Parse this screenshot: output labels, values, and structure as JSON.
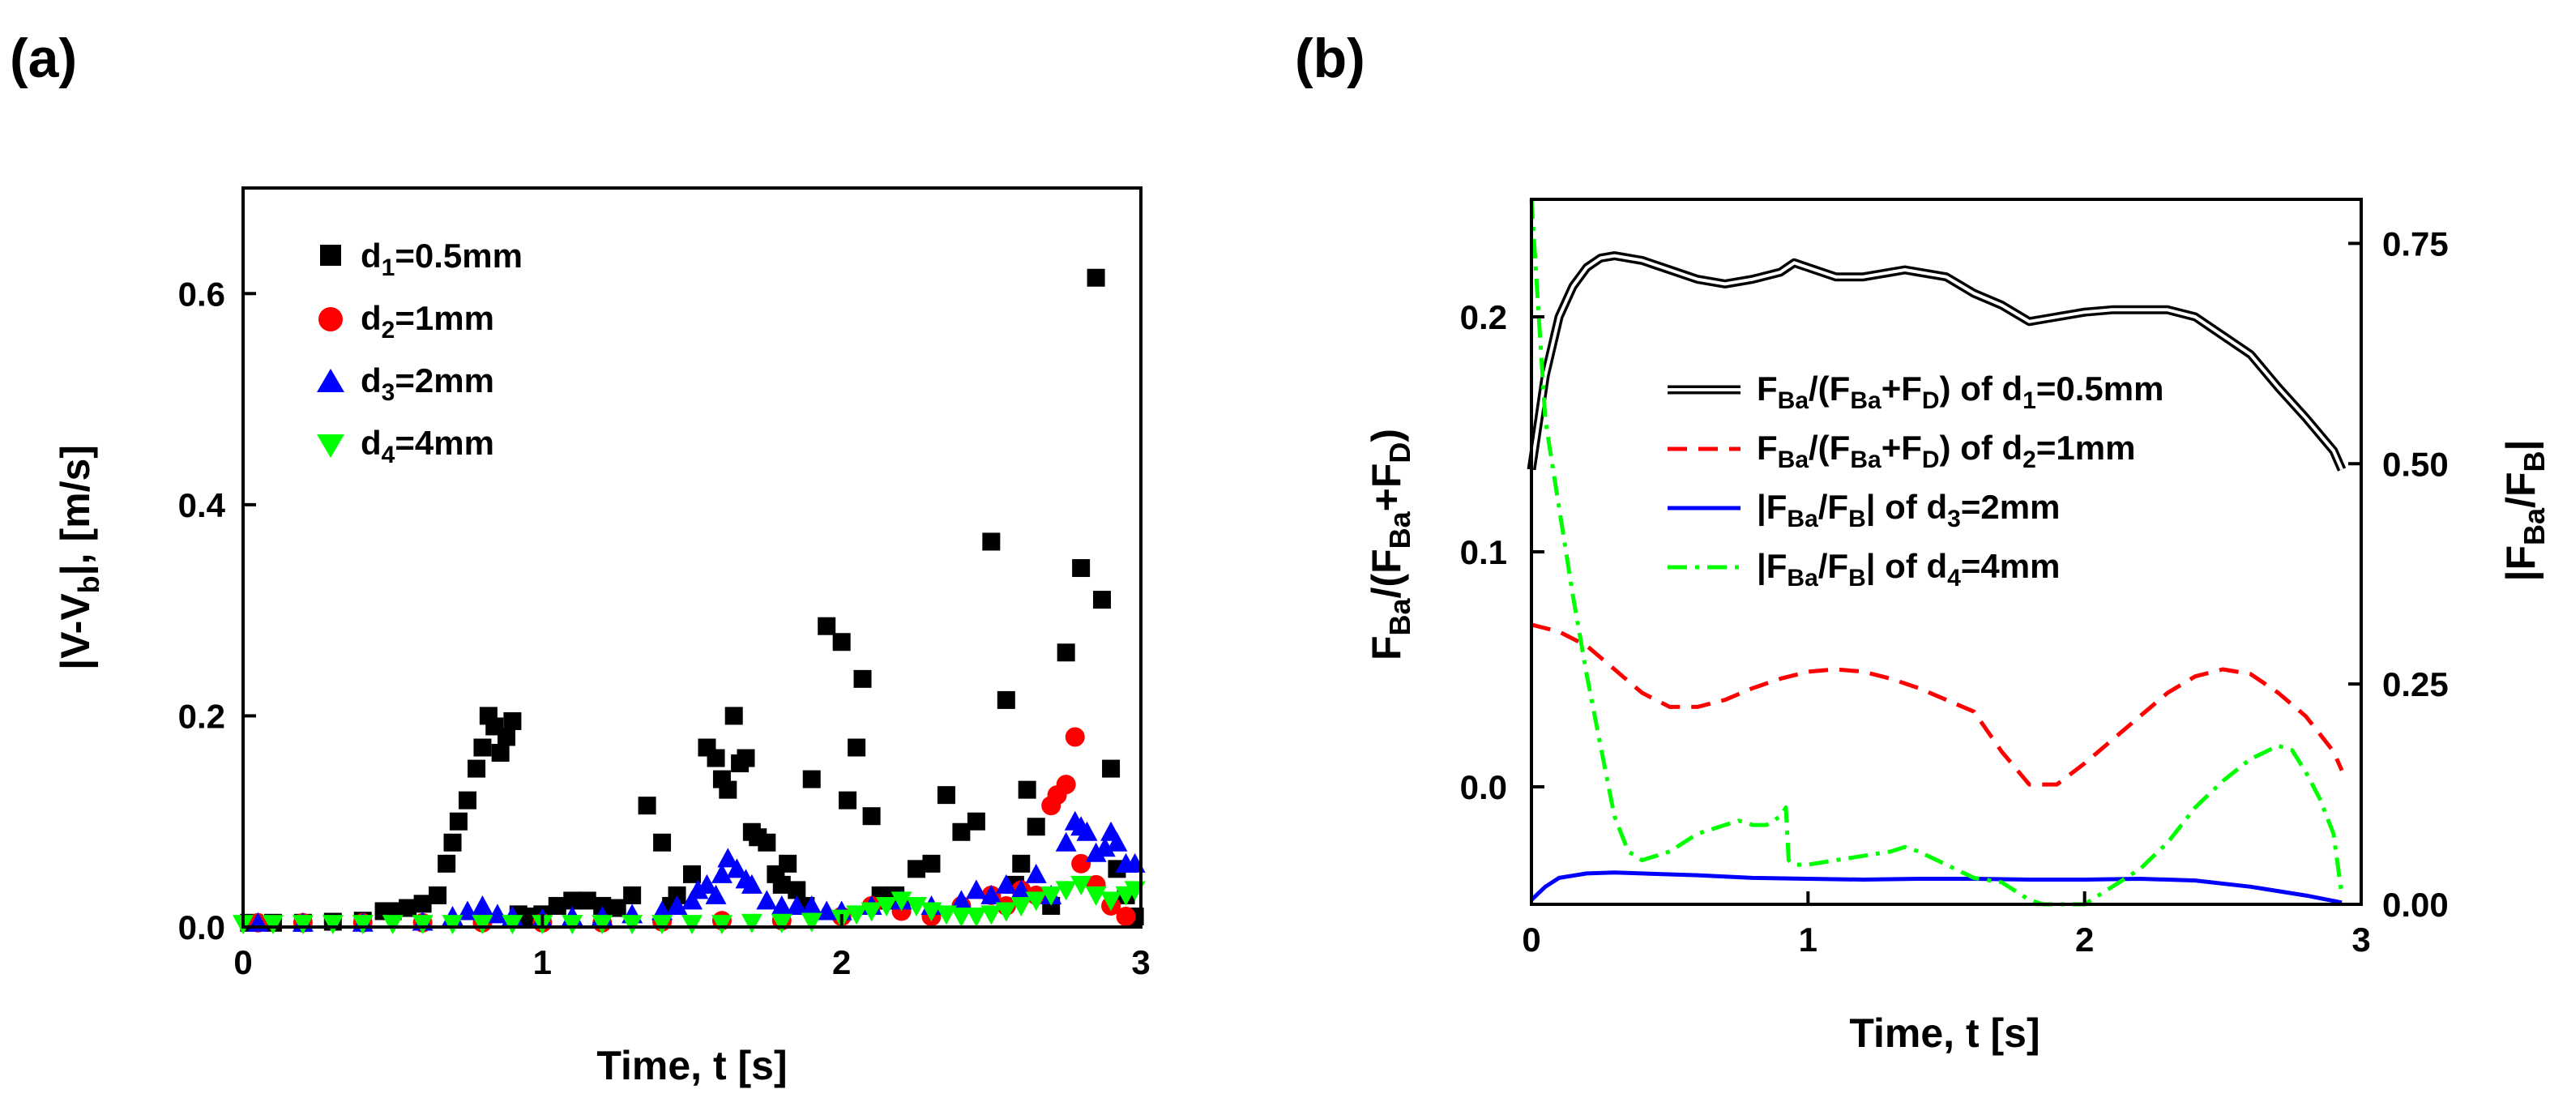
{
  "colors": {
    "black": "#000000",
    "red": "#ff0000",
    "blue": "#0000ff",
    "green": "#00ff00",
    "axis": "#000000"
  },
  "panel_labels": [
    "(a)",
    "(b)"
  ],
  "chart_data": [
    {
      "type": "scatter",
      "panel": "(a)",
      "xlabel": "Time, t  [s]",
      "ylabel_parts": {
        "a": "|V-V",
        "sub": "b",
        "b": "|, [m/s]"
      },
      "xlim": [
        0,
        3
      ],
      "ylim": [
        0,
        0.7
      ],
      "xticks": [
        0,
        1,
        2,
        3
      ],
      "xtick_labels": [
        "0",
        "1",
        "2",
        "3"
      ],
      "yticks": [
        0,
        0.2,
        0.4,
        0.6
      ],
      "ytick_labels": [
        "0.0",
        "0.2",
        "0.4",
        "0.6"
      ],
      "legend": [
        {
          "pre": "d",
          "sub": "1",
          "post": "=0.5mm"
        },
        {
          "pre": "d",
          "sub": "2",
          "post": "=1mm"
        },
        {
          "pre": "d",
          "sub": "3",
          "post": "=2mm"
        },
        {
          "pre": "d",
          "sub": "4",
          "post": "=4mm"
        }
      ],
      "series": [
        {
          "name": "d1=0.5mm",
          "marker": "square",
          "color": "#000000",
          "x": [
            0.02,
            0.1,
            0.2,
            0.3,
            0.4,
            0.47,
            0.5,
            0.55,
            0.6,
            0.65,
            0.68,
            0.7,
            0.72,
            0.75,
            0.78,
            0.8,
            0.82,
            0.84,
            0.86,
            0.88,
            0.9,
            0.92,
            0.95,
            1.0,
            1.05,
            1.1,
            1.15,
            1.2,
            1.25,
            1.3,
            1.35,
            1.4,
            1.43,
            1.45,
            1.5,
            1.55,
            1.58,
            1.6,
            1.62,
            1.64,
            1.66,
            1.68,
            1.7,
            1.72,
            1.75,
            1.78,
            1.8,
            1.82,
            1.85,
            1.88,
            1.9,
            1.95,
            2.0,
            2.02,
            2.05,
            2.07,
            2.1,
            2.13,
            2.15,
            2.18,
            2.2,
            2.25,
            2.3,
            2.35,
            2.4,
            2.45,
            2.5,
            2.55,
            2.58,
            2.6,
            2.62,
            2.65,
            2.7,
            2.75,
            2.8,
            2.85,
            2.87,
            2.9,
            2.92,
            2.95,
            2.98
          ],
          "y": [
            0.004,
            0.004,
            0.004,
            0.005,
            0.006,
            0.015,
            0.015,
            0.018,
            0.022,
            0.03,
            0.06,
            0.08,
            0.1,
            0.12,
            0.15,
            0.17,
            0.2,
            0.19,
            0.165,
            0.18,
            0.195,
            0.012,
            0.01,
            0.012,
            0.02,
            0.025,
            0.025,
            0.02,
            0.018,
            0.03,
            0.115,
            0.08,
            0.02,
            0.03,
            0.05,
            0.17,
            0.16,
            0.14,
            0.13,
            0.2,
            0.155,
            0.16,
            0.09,
            0.085,
            0.08,
            0.05,
            0.04,
            0.06,
            0.035,
            0.02,
            0.14,
            0.285,
            0.27,
            0.12,
            0.17,
            0.235,
            0.105,
            0.03,
            0.025,
            0.03,
            0.02,
            0.055,
            0.06,
            0.125,
            0.09,
            0.1,
            0.365,
            0.215,
            0.04,
            0.06,
            0.13,
            0.095,
            0.02,
            0.26,
            0.34,
            0.615,
            0.31,
            0.15,
            0.055,
            0.03,
            0.01
          ]
        },
        {
          "name": "d2=1mm",
          "marker": "circle",
          "color": "#ff0000",
          "x": [
            0.05,
            0.2,
            0.4,
            0.6,
            0.8,
            1.0,
            1.2,
            1.4,
            1.6,
            1.8,
            2.0,
            2.1,
            2.2,
            2.3,
            2.4,
            2.5,
            2.55,
            2.6,
            2.65,
            2.7,
            2.72,
            2.75,
            2.78,
            2.8,
            2.85,
            2.9,
            2.95
          ],
          "y": [
            0.004,
            0.004,
            0.004,
            0.004,
            0.004,
            0.004,
            0.004,
            0.005,
            0.006,
            0.006,
            0.01,
            0.02,
            0.015,
            0.01,
            0.02,
            0.03,
            0.02,
            0.035,
            0.03,
            0.115,
            0.125,
            0.135,
            0.18,
            0.06,
            0.04,
            0.02,
            0.01
          ]
        },
        {
          "name": "d3=2mm",
          "marker": "triangle-up",
          "color": "#0000ff",
          "x": [
            0.05,
            0.2,
            0.4,
            0.6,
            0.7,
            0.75,
            0.8,
            0.85,
            0.9,
            1.0,
            1.1,
            1.2,
            1.3,
            1.4,
            1.45,
            1.5,
            1.52,
            1.55,
            1.58,
            1.6,
            1.62,
            1.65,
            1.68,
            1.7,
            1.75,
            1.8,
            1.85,
            1.9,
            1.95,
            2.0,
            2.1,
            2.2,
            2.3,
            2.4,
            2.45,
            2.5,
            2.55,
            2.6,
            2.65,
            2.7,
            2.75,
            2.78,
            2.8,
            2.82,
            2.85,
            2.88,
            2.9,
            2.92,
            2.95,
            2.98
          ],
          "y": [
            0.004,
            0.004,
            0.004,
            0.005,
            0.01,
            0.015,
            0.02,
            0.012,
            0.01,
            0.008,
            0.01,
            0.01,
            0.012,
            0.015,
            0.02,
            0.025,
            0.035,
            0.04,
            0.03,
            0.05,
            0.065,
            0.055,
            0.045,
            0.04,
            0.025,
            0.02,
            0.02,
            0.02,
            0.015,
            0.015,
            0.02,
            0.025,
            0.02,
            0.025,
            0.035,
            0.03,
            0.04,
            0.035,
            0.05,
            0.03,
            0.08,
            0.1,
            0.095,
            0.09,
            0.07,
            0.075,
            0.09,
            0.08,
            0.06,
            0.06
          ]
        },
        {
          "name": "d4=4mm",
          "marker": "triangle-down",
          "color": "#00ff00",
          "x": [
            0.0,
            0.1,
            0.2,
            0.3,
            0.4,
            0.5,
            0.6,
            0.7,
            0.8,
            0.9,
            1.0,
            1.1,
            1.2,
            1.3,
            1.4,
            1.5,
            1.6,
            1.7,
            1.8,
            1.9,
            2.0,
            2.05,
            2.1,
            2.15,
            2.2,
            2.25,
            2.3,
            2.35,
            2.4,
            2.45,
            2.5,
            2.55,
            2.6,
            2.65,
            2.7,
            2.75,
            2.8,
            2.85,
            2.9,
            2.95,
            2.98
          ],
          "y": [
            0.003,
            0.003,
            0.003,
            0.003,
            0.003,
            0.003,
            0.003,
            0.003,
            0.003,
            0.003,
            0.003,
            0.003,
            0.003,
            0.003,
            0.003,
            0.003,
            0.003,
            0.004,
            0.004,
            0.005,
            0.008,
            0.012,
            0.015,
            0.02,
            0.025,
            0.02,
            0.015,
            0.012,
            0.01,
            0.01,
            0.012,
            0.015,
            0.02,
            0.025,
            0.03,
            0.035,
            0.04,
            0.03,
            0.025,
            0.03,
            0.035
          ]
        }
      ]
    },
    {
      "type": "line",
      "panel": "(b)",
      "xlabel": "Time, t  [s]",
      "xlim": [
        0,
        3
      ],
      "ylim_left": [
        -0.05,
        0.25
      ],
      "ylim_right": [
        0,
        0.8
      ],
      "xticks": [
        0,
        1,
        2,
        3
      ],
      "xtick_labels": [
        "0",
        "1",
        "2",
        "3"
      ],
      "yticks_left": [
        0,
        0.1,
        0.2
      ],
      "ytick_labels_left": [
        "0.0",
        "0.1",
        "0.2"
      ],
      "yticks_right": [
        0,
        0.25,
        0.5,
        0.75
      ],
      "ytick_labels_right": [
        "0.00",
        "0.25",
        "0.50",
        "0.75"
      ],
      "ylabel_left_parts": {
        "a": "F",
        "s1": "Ba",
        "b": "/(F",
        "s2": "Ba",
        "c": "+F",
        "s3": "D",
        "d": ")"
      },
      "ylabel_right_parts": {
        "a": "|F",
        "s1": "Ba",
        "b": "/F",
        "s2": "B",
        "c": "|"
      },
      "legend": [
        {
          "a": "F",
          "s1": "Ba",
          "b": "/(F",
          "s2": "Ba",
          "c": "+F",
          "s3": "D",
          "d": ") of d",
          "s4": "1",
          "e": "=0.5mm"
        },
        {
          "a": "F",
          "s1": "Ba",
          "b": "/(F",
          "s2": "Ba",
          "c": "+F",
          "s3": "D",
          "d": ") of d",
          "s4": "2",
          "e": "=1mm"
        },
        {
          "a": "|F",
          "s1": "Ba",
          "b": "/F",
          "s2": "B",
          "c": "| of d",
          "s3": "3",
          "d": "=2mm"
        },
        {
          "a": "|F",
          "s1": "Ba",
          "b": "/F",
          "s2": "B",
          "c": "| of d",
          "s3": "4",
          "d": "=4mm"
        }
      ],
      "series": [
        {
          "name": "FBa/(FBa+FD) of d1=0.5mm",
          "axis": "left",
          "style": "double",
          "color": "#000000",
          "x": [
            0,
            0.05,
            0.1,
            0.15,
            0.2,
            0.25,
            0.3,
            0.4,
            0.5,
            0.6,
            0.7,
            0.8,
            0.9,
            0.95,
            1.0,
            1.1,
            1.2,
            1.3,
            1.35,
            1.4,
            1.5,
            1.6,
            1.7,
            1.8,
            1.9,
            2.0,
            2.1,
            2.2,
            2.3,
            2.4,
            2.5,
            2.6,
            2.7,
            2.8,
            2.9,
            2.93
          ],
          "y": [
            0.135,
            0.175,
            0.2,
            0.213,
            0.221,
            0.225,
            0.226,
            0.224,
            0.22,
            0.216,
            0.214,
            0.216,
            0.219,
            0.223,
            0.221,
            0.217,
            0.217,
            0.219,
            0.22,
            0.219,
            0.217,
            0.21,
            0.205,
            0.198,
            0.2,
            0.202,
            0.203,
            0.203,
            0.203,
            0.2,
            0.192,
            0.184,
            0.17,
            0.157,
            0.143,
            0.135
          ]
        },
        {
          "name": "FBa/(FBa+FD) of d2=1mm",
          "axis": "left",
          "style": "dash",
          "color": "#ff0000",
          "x": [
            0,
            0.1,
            0.2,
            0.3,
            0.4,
            0.5,
            0.6,
            0.7,
            0.8,
            0.9,
            1.0,
            1.1,
            1.2,
            1.3,
            1.4,
            1.5,
            1.6,
            1.7,
            1.8,
            1.9,
            2.0,
            2.1,
            2.2,
            2.3,
            2.4,
            2.5,
            2.6,
            2.7,
            2.8,
            2.9,
            2.93
          ],
          "y": [
            0.069,
            0.066,
            0.06,
            0.05,
            0.04,
            0.034,
            0.034,
            0.037,
            0.042,
            0.046,
            0.049,
            0.05,
            0.049,
            0.046,
            0.042,
            0.037,
            0.032,
            0.015,
            0.001,
            0.001,
            0.01,
            0.02,
            0.03,
            0.04,
            0.047,
            0.05,
            0.048,
            0.04,
            0.03,
            0.015,
            0.007
          ]
        },
        {
          "name": "|FBa/FB| of d3=2mm",
          "axis": "right",
          "style": "solid",
          "color": "#0000ff",
          "x": [
            0,
            0.05,
            0.1,
            0.2,
            0.3,
            0.4,
            0.6,
            0.8,
            1.0,
            1.2,
            1.4,
            1.6,
            1.8,
            2.0,
            2.2,
            2.4,
            2.6,
            2.8,
            2.93
          ],
          "y": [
            0.005,
            0.02,
            0.03,
            0.035,
            0.036,
            0.035,
            0.033,
            0.03,
            0.029,
            0.028,
            0.029,
            0.029,
            0.028,
            0.028,
            0.029,
            0.027,
            0.02,
            0.01,
            0.002
          ]
        },
        {
          "name": "|FBa/FB| of d4=4mm",
          "axis": "right",
          "style": "dashdot",
          "color": "#00ff00",
          "x": [
            0,
            0.02,
            0.05,
            0.1,
            0.15,
            0.2,
            0.25,
            0.3,
            0.35,
            0.4,
            0.5,
            0.6,
            0.7,
            0.75,
            0.8,
            0.85,
            0.9,
            0.92,
            0.93,
            0.95,
            1.0,
            1.1,
            1.2,
            1.3,
            1.35,
            1.4,
            1.5,
            1.6,
            1.7,
            1.8,
            1.85,
            1.9,
            2.0,
            2.1,
            2.2,
            2.3,
            2.4,
            2.5,
            2.6,
            2.7,
            2.75,
            2.8,
            2.85,
            2.9,
            2.93
          ],
          "y": [
            0.8,
            0.7,
            0.55,
            0.45,
            0.35,
            0.26,
            0.18,
            0.1,
            0.06,
            0.05,
            0.06,
            0.08,
            0.09,
            0.095,
            0.09,
            0.09,
            0.1,
            0.11,
            0.05,
            0.045,
            0.045,
            0.05,
            0.055,
            0.06,
            0.065,
            0.06,
            0.045,
            0.03,
            0.025,
            0.005,
            0.0,
            0.0,
            0.0,
            0.02,
            0.04,
            0.07,
            0.11,
            0.14,
            0.165,
            0.18,
            0.175,
            0.15,
            0.12,
            0.08,
            0.01
          ]
        }
      ]
    }
  ]
}
